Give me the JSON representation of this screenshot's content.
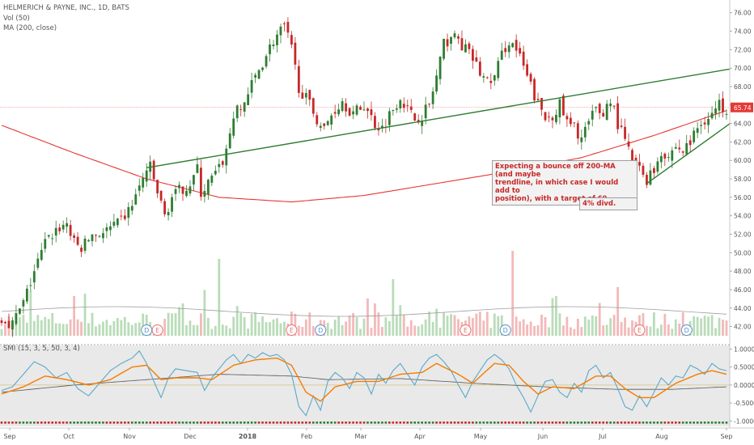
{
  "legend": {
    "title": "HELMERICH & PAYNE, INC., 1D, BATS",
    "vol": "Vol (50)",
    "ma": "MA (200, close)",
    "smi": "SMI (15, 3, 5, 50, 3, 4)"
  },
  "annotations": {
    "bounce": "Expecting a bounce off 200-MA (and maybe\ntrendline, in which case I would add to\nposition), with a target of 69.",
    "dividend": "4% divd."
  },
  "colors": {
    "up": "#2e7d32",
    "down": "#c62828",
    "ma200": "#e53935",
    "trend": "#2e7d32",
    "smi_fast": "#5aa9c8",
    "smi_signal": "#f57c00",
    "smi_slow": "#555555",
    "price_tag": "#e53935"
  },
  "chart_data": {
    "type": "candlestick",
    "x_ticks": [
      "Sep",
      "Oct",
      "Nov",
      "Dec",
      "2018",
      "Feb",
      "Mar",
      "Apr",
      "May",
      "Jun",
      "Jul",
      "Aug",
      "Sep"
    ],
    "price_axis": {
      "ylim": [
        41,
        76.5
      ],
      "ticks": [
        "76.00",
        "74.00",
        "72.00",
        "70.00",
        "68.00",
        "66.00",
        "64.00",
        "62.00",
        "60.00",
        "58.00",
        "56.00",
        "54.00",
        "52.00",
        "50.00",
        "48.00",
        "46.00",
        "44.00",
        "42.00"
      ]
    },
    "last_price": "65.74",
    "close_path": [
      [
        0,
        43
      ],
      [
        3,
        42.3
      ],
      [
        6,
        44.5
      ],
      [
        9,
        48
      ],
      [
        12,
        51
      ],
      [
        15,
        52.5
      ],
      [
        18,
        53.2
      ],
      [
        20,
        51
      ],
      [
        22,
        50.5
      ],
      [
        25,
        52
      ],
      [
        28,
        52.2
      ],
      [
        32,
        53
      ],
      [
        35,
        54.5
      ],
      [
        38,
        57
      ],
      [
        40,
        59
      ],
      [
        41,
        59.2
      ],
      [
        43,
        56.5
      ],
      [
        45,
        54
      ],
      [
        47,
        56
      ],
      [
        50,
        57
      ],
      [
        52,
        57.5
      ],
      [
        54,
        59
      ],
      [
        55,
        56.5
      ],
      [
        57,
        57.5
      ],
      [
        60,
        59
      ],
      [
        62,
        61
      ],
      [
        64,
        65
      ],
      [
        66,
        65.5
      ],
      [
        70,
        69
      ],
      [
        73,
        71.5
      ],
      [
        75,
        73
      ],
      [
        78,
        74.5
      ],
      [
        80,
        72
      ],
      [
        82,
        68
      ],
      [
        85,
        66
      ],
      [
        87,
        64.5
      ],
      [
        89,
        63.3
      ],
      [
        91,
        65
      ],
      [
        94,
        66.5
      ],
      [
        97,
        65
      ],
      [
        100,
        66
      ],
      [
        103,
        64
      ],
      [
        105,
        63.5
      ],
      [
        107,
        65
      ],
      [
        110,
        67
      ],
      [
        112,
        65.5
      ],
      [
        114,
        64.5
      ],
      [
        116,
        65
      ],
      [
        118,
        66
      ],
      [
        120,
        69
      ],
      [
        122,
        72.5
      ],
      [
        124,
        73.5
      ],
      [
        126,
        73
      ],
      [
        128,
        72
      ],
      [
        130,
        71
      ],
      [
        132,
        69.5
      ],
      [
        134,
        68.5
      ],
      [
        136,
        69
      ],
      [
        138,
        71.5
      ],
      [
        140,
        73
      ],
      [
        142,
        72
      ],
      [
        144,
        70
      ],
      [
        146,
        68
      ],
      [
        148,
        66
      ],
      [
        150,
        64.5
      ],
      [
        152,
        65
      ],
      [
        154,
        66
      ],
      [
        156,
        64
      ],
      [
        158,
        63.5
      ],
      [
        160,
        62.5
      ],
      [
        162,
        64
      ],
      [
        164,
        65.5
      ],
      [
        166,
        65
      ],
      [
        168,
        66.8
      ],
      [
        170,
        64
      ],
      [
        172,
        62
      ],
      [
        174,
        60
      ],
      [
        176,
        59
      ],
      [
        178,
        58
      ],
      [
        180,
        59
      ],
      [
        182,
        61
      ],
      [
        184,
        60.5
      ],
      [
        186,
        61.5
      ],
      [
        188,
        61
      ],
      [
        190,
        62
      ],
      [
        192,
        63.5
      ],
      [
        194,
        64.5
      ],
      [
        196,
        65
      ],
      [
        198,
        66
      ],
      [
        200,
        65.7
      ]
    ],
    "ma200_path": [
      [
        0,
        63.8
      ],
      [
        20,
        60.8
      ],
      [
        40,
        58
      ],
      [
        60,
        56
      ],
      [
        80,
        55.5
      ],
      [
        100,
        56.2
      ],
      [
        120,
        57.5
      ],
      [
        140,
        58.8
      ],
      [
        160,
        60.3
      ],
      [
        180,
        62.7
      ],
      [
        200,
        65.4
      ]
    ],
    "trendlines": [
      {
        "from": [
          40,
          59.2
        ],
        "to": [
          201,
          69.9
        ]
      },
      {
        "from": [
          178,
          57.5
        ],
        "to": [
          201,
          64
        ]
      }
    ],
    "earnings_markers": [
      {
        "label": "D",
        "x": 40
      },
      {
        "label": "E",
        "x": 43
      },
      {
        "label": "E",
        "x": 80
      },
      {
        "label": "D",
        "x": 88
      },
      {
        "label": "E",
        "x": 128
      },
      {
        "label": "D",
        "x": 139
      },
      {
        "label": "E",
        "x": 176
      },
      {
        "label": "D",
        "x": 189
      }
    ],
    "volume": {
      "series_name": "Vol (50)"
    },
    "smi": {
      "ylim": [
        -1.15,
        1.1
      ],
      "ticks": [
        "1.0000",
        "0.5000",
        "0.0000",
        "-0.5000",
        "-1.0000"
      ],
      "fast_path": [
        [
          0,
          -0.15
        ],
        [
          3,
          -0.05
        ],
        [
          6,
          0.3
        ],
        [
          9,
          0.65
        ],
        [
          12,
          0.5
        ],
        [
          15,
          0.2
        ],
        [
          18,
          0.35
        ],
        [
          21,
          -0.1
        ],
        [
          24,
          -0.3
        ],
        [
          27,
          0.05
        ],
        [
          30,
          0.4
        ],
        [
          33,
          0.6
        ],
        [
          36,
          0.75
        ],
        [
          38,
          0.95
        ],
        [
          40,
          0.6
        ],
        [
          42,
          0.1
        ],
        [
          44,
          -0.35
        ],
        [
          46,
          0.2
        ],
        [
          48,
          0.45
        ],
        [
          51,
          0.4
        ],
        [
          54,
          0.35
        ],
        [
          56,
          -0.15
        ],
        [
          58,
          0.2
        ],
        [
          60,
          0.45
        ],
        [
          62,
          0.7
        ],
        [
          64,
          0.85
        ],
        [
          66,
          0.6
        ],
        [
          68,
          0.85
        ],
        [
          70,
          0.75
        ],
        [
          72,
          0.9
        ],
        [
          74,
          0.8
        ],
        [
          76,
          0.85
        ],
        [
          78,
          0.7
        ],
        [
          80,
          0.3
        ],
        [
          82,
          -0.6
        ],
        [
          84,
          -0.85
        ],
        [
          86,
          -0.3
        ],
        [
          88,
          -0.7
        ],
        [
          90,
          0.1
        ],
        [
          92,
          0.35
        ],
        [
          94,
          0.2
        ],
        [
          96,
          -0.1
        ],
        [
          98,
          0.35
        ],
        [
          100,
          0.2
        ],
        [
          102,
          -0.25
        ],
        [
          104,
          0.3
        ],
        [
          106,
          0.05
        ],
        [
          108,
          0.4
        ],
        [
          110,
          0.6
        ],
        [
          112,
          0.3
        ],
        [
          114,
          0.0
        ],
        [
          116,
          0.5
        ],
        [
          118,
          0.75
        ],
        [
          120,
          0.85
        ],
        [
          122,
          0.65
        ],
        [
          124,
          0.4
        ],
        [
          126,
          0.0
        ],
        [
          128,
          -0.35
        ],
        [
          130,
          0.1
        ],
        [
          132,
          0.4
        ],
        [
          134,
          0.7
        ],
        [
          136,
          0.85
        ],
        [
          138,
          0.7
        ],
        [
          140,
          0.45
        ],
        [
          142,
          0.0
        ],
        [
          144,
          -0.35
        ],
        [
          146,
          -0.75
        ],
        [
          148,
          -0.3
        ],
        [
          150,
          0.1
        ],
        [
          152,
          0.15
        ],
        [
          154,
          -0.2
        ],
        [
          156,
          -0.35
        ],
        [
          158,
          0.05
        ],
        [
          160,
          -0.2
        ],
        [
          162,
          0.4
        ],
        [
          164,
          0.55
        ],
        [
          166,
          0.2
        ],
        [
          168,
          0.35
        ],
        [
          170,
          -0.1
        ],
        [
          172,
          -0.6
        ],
        [
          174,
          -0.7
        ],
        [
          176,
          -0.3
        ],
        [
          178,
          -0.6
        ],
        [
          180,
          -0.2
        ],
        [
          182,
          0.2
        ],
        [
          184,
          0.0
        ],
        [
          186,
          0.25
        ],
        [
          188,
          0.2
        ],
        [
          190,
          0.55
        ],
        [
          192,
          0.45
        ],
        [
          194,
          0.3
        ],
        [
          196,
          0.6
        ],
        [
          198,
          0.45
        ],
        [
          200,
          0.4
        ]
      ],
      "signal_path": [
        [
          0,
          -0.25
        ],
        [
          6,
          -0.05
        ],
        [
          12,
          0.25
        ],
        [
          18,
          0.15
        ],
        [
          24,
          0.0
        ],
        [
          30,
          0.15
        ],
        [
          36,
          0.5
        ],
        [
          40,
          0.55
        ],
        [
          44,
          0.15
        ],
        [
          48,
          0.2
        ],
        [
          54,
          0.2
        ],
        [
          58,
          0.15
        ],
        [
          64,
          0.55
        ],
        [
          70,
          0.7
        ],
        [
          76,
          0.75
        ],
        [
          80,
          0.55
        ],
        [
          84,
          -0.2
        ],
        [
          88,
          -0.45
        ],
        [
          92,
          -0.05
        ],
        [
          98,
          0.1
        ],
        [
          104,
          0.1
        ],
        [
          110,
          0.3
        ],
        [
          116,
          0.35
        ],
        [
          120,
          0.6
        ],
        [
          126,
          0.3
        ],
        [
          130,
          0.05
        ],
        [
          136,
          0.6
        ],
        [
          140,
          0.55
        ],
        [
          144,
          0.1
        ],
        [
          148,
          -0.25
        ],
        [
          152,
          -0.05
        ],
        [
          158,
          -0.1
        ],
        [
          164,
          0.25
        ],
        [
          168,
          0.25
        ],
        [
          172,
          -0.1
        ],
        [
          176,
          -0.35
        ],
        [
          180,
          -0.35
        ],
        [
          186,
          0.05
        ],
        [
          192,
          0.3
        ],
        [
          196,
          0.4
        ],
        [
          200,
          0.3
        ]
      ],
      "slow_path": [
        [
          0,
          -0.2
        ],
        [
          20,
          0.0
        ],
        [
          40,
          0.15
        ],
        [
          60,
          0.3
        ],
        [
          80,
          0.25
        ],
        [
          90,
          0.15
        ],
        [
          110,
          0.18
        ],
        [
          130,
          0.05
        ],
        [
          150,
          -0.05
        ],
        [
          170,
          -0.12
        ],
        [
          185,
          -0.12
        ],
        [
          200,
          -0.05
        ]
      ],
      "histogram_path": [
        [
          0,
          -1
        ],
        [
          8,
          1
        ],
        [
          12,
          -1
        ],
        [
          25,
          1
        ],
        [
          32,
          -1
        ],
        [
          38,
          1
        ],
        [
          44,
          -1
        ],
        [
          52,
          1
        ],
        [
          58,
          -1
        ],
        [
          62,
          1
        ],
        [
          80,
          -1
        ],
        [
          90,
          1
        ],
        [
          96,
          -1
        ],
        [
          104,
          1
        ],
        [
          110,
          -1
        ],
        [
          114,
          1
        ],
        [
          126,
          -1
        ],
        [
          134,
          1
        ],
        [
          142,
          -1
        ],
        [
          146,
          1
        ],
        [
          150,
          -1
        ],
        [
          160,
          1
        ],
        [
          166,
          -1
        ],
        [
          168,
          1
        ],
        [
          172,
          -1
        ],
        [
          180,
          1
        ],
        [
          186,
          -1
        ],
        [
          189,
          1
        ],
        [
          200,
          1
        ]
      ]
    }
  }
}
